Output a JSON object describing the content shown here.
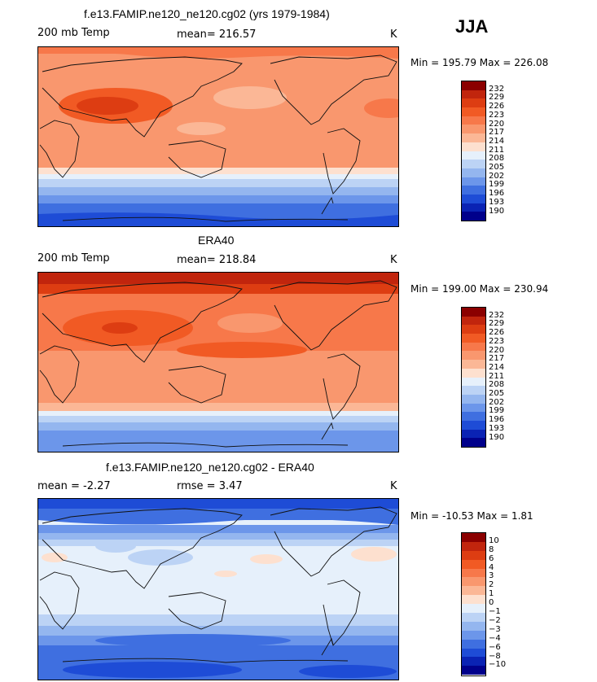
{
  "season": "JJA",
  "panels": [
    {
      "title": "f.e13.FAMIP.ne120_ne120.cg02 (yrs 1979-1984)",
      "left_label": "200 mb Temp",
      "center_label": "mean= 216.57",
      "units": "K",
      "minmax": "Min = 195.79 Max = 226.08",
      "colorbar": {
        "labels": [
          "232",
          "229",
          "226",
          "223",
          "220",
          "217",
          "214",
          "211",
          "208",
          "205",
          "202",
          "199",
          "196",
          "193",
          "190"
        ],
        "colors": [
          "#8b0000",
          "#c1250d",
          "#dd3d12",
          "#f15a24",
          "#f7784a",
          "#f9976e",
          "#fbb796",
          "#fde0cf",
          "#e6f0fb",
          "#bcd3f5",
          "#94b6ef",
          "#6c96ea",
          "#3f6fe0",
          "#1e4cd6",
          "#0a23b4",
          "#00008b"
        ]
      }
    },
    {
      "title": "ERA40",
      "left_label": "200 mb Temp",
      "center_label": "mean= 218.84",
      "units": "K",
      "minmax": "Min = 199.00 Max = 230.94",
      "colorbar": {
        "labels": [
          "232",
          "229",
          "226",
          "223",
          "220",
          "217",
          "214",
          "211",
          "208",
          "205",
          "202",
          "199",
          "196",
          "193",
          "190"
        ],
        "colors": [
          "#8b0000",
          "#c1250d",
          "#dd3d12",
          "#f15a24",
          "#f7784a",
          "#f9976e",
          "#fbb796",
          "#fde0cf",
          "#e6f0fb",
          "#bcd3f5",
          "#94b6ef",
          "#6c96ea",
          "#3f6fe0",
          "#1e4cd6",
          "#0a23b4",
          "#00008b"
        ]
      }
    },
    {
      "title": "f.e13.FAMIP.ne120_ne120.cg02 - ERA40",
      "left_label": "mean =  -2.27",
      "center_label": "rmse =   3.47",
      "units": "K",
      "minmax": "Min = -10.53 Max =   1.81",
      "colorbar": {
        "labels": [
          "10",
          "8",
          "6",
          "4",
          "3",
          "2",
          "1",
          "0",
          "−1",
          "−2",
          "−3",
          "−4",
          "−6",
          "−8",
          "−10"
        ],
        "colors": [
          "#8b0000",
          "#c1250d",
          "#dd3d12",
          "#f15a24",
          "#f7784a",
          "#f9976e",
          "#fbb796",
          "#fde0cf",
          "#e6f0fb",
          "#bcd3f5",
          "#94b6ef",
          "#6c96ea",
          "#3f6fe0",
          "#1e4cd6",
          "#0a23b4",
          "#00008b"
        ]
      }
    }
  ]
}
